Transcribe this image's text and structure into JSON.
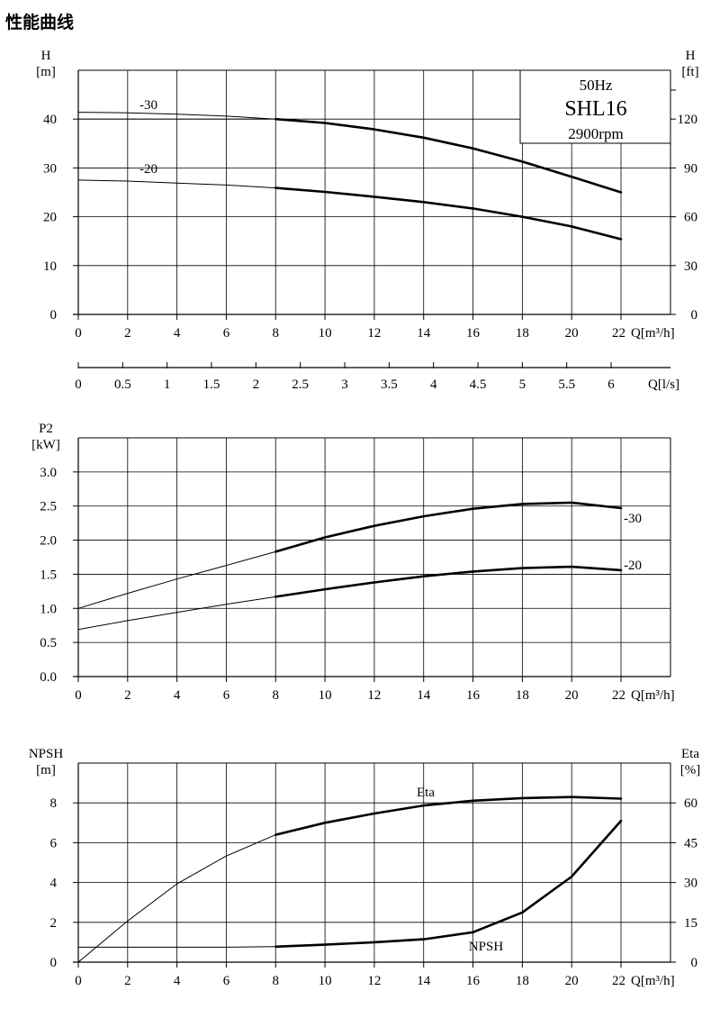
{
  "page_title": "性能曲线",
  "chart_data": [
    {
      "type": "line",
      "y_label": "H",
      "y_unit": "[m]",
      "y2_label": "H",
      "y2_unit": "[ft]",
      "x_label": "Q[m³/h]",
      "x_ticks": [
        "0",
        "2",
        "4",
        "6",
        "8",
        "10",
        "12",
        "14",
        "16",
        "18",
        "20",
        "22"
      ],
      "y_ticks": [
        "0",
        "10",
        "20",
        "30",
        "40"
      ],
      "y2_ticks": [
        "0",
        "30",
        "60",
        "90",
        "120"
      ],
      "xlim": [
        0,
        22
      ],
      "ylim": [
        0,
        50
      ],
      "grid": true,
      "info_box": {
        "freq": "50Hz",
        "model": "SHL16",
        "speed": "2900rpm"
      },
      "series": [
        {
          "name": "-30",
          "x": [
            0,
            2,
            4,
            6,
            8,
            10,
            12,
            14,
            16,
            18,
            20,
            22
          ],
          "y": [
            41.4,
            41.3,
            41,
            40.6,
            40,
            39.2,
            37.9,
            36.2,
            34,
            31.3,
            28.2,
            25
          ]
        },
        {
          "name": "-20",
          "x": [
            0,
            2,
            4,
            6,
            8,
            10,
            12,
            14,
            16,
            18,
            20,
            22
          ],
          "y": [
            27.5,
            27.3,
            26.9,
            26.5,
            25.9,
            25.1,
            24.1,
            23,
            21.7,
            20,
            18,
            15.4
          ]
        }
      ],
      "q_ls_label": "Q[l/s]",
      "q_ls_ticks": [
        "0",
        "0.5",
        "1",
        "1.5",
        "2",
        "2.5",
        "3",
        "3.5",
        "4",
        "4.5",
        "5",
        "5.5",
        "6"
      ]
    },
    {
      "type": "line",
      "y_label": "P2",
      "y_unit": "[kW]",
      "x_label": "Q[m³/h]",
      "x_ticks": [
        "0",
        "2",
        "4",
        "6",
        "8",
        "10",
        "12",
        "14",
        "16",
        "18",
        "20",
        "22"
      ],
      "y_ticks": [
        "0.0",
        "0.5",
        "1.0",
        "1.5",
        "2.0",
        "2.5",
        "3.0"
      ],
      "xlim": [
        0,
        22
      ],
      "ylim": [
        0,
        3.5
      ],
      "grid": true,
      "series": [
        {
          "name": "-30",
          "x": [
            0,
            2,
            4,
            6,
            8,
            10,
            12,
            14,
            16,
            18,
            20,
            22
          ],
          "y": [
            1.0,
            1.22,
            1.43,
            1.63,
            1.83,
            2.04,
            2.21,
            2.35,
            2.46,
            2.53,
            2.55,
            2.47
          ]
        },
        {
          "name": "-20",
          "x": [
            0,
            2,
            4,
            6,
            8,
            10,
            12,
            14,
            16,
            18,
            20,
            22
          ],
          "y": [
            0.69,
            0.82,
            0.94,
            1.06,
            1.17,
            1.28,
            1.38,
            1.47,
            1.54,
            1.59,
            1.61,
            1.56
          ]
        }
      ]
    },
    {
      "type": "line",
      "y_label": "NPSH",
      "y_unit": "[m]",
      "y2_label": "Eta",
      "y2_unit": "[%]",
      "x_label": "Q[m³/h]",
      "x_ticks": [
        "0",
        "2",
        "4",
        "6",
        "8",
        "10",
        "12",
        "14",
        "16",
        "18",
        "20",
        "22"
      ],
      "y_ticks": [
        "0",
        "2",
        "4",
        "6",
        "8"
      ],
      "y2_ticks": [
        "0",
        "15",
        "30",
        "45",
        "60"
      ],
      "xlim": [
        0,
        22
      ],
      "ylim": [
        0,
        10
      ],
      "grid": true,
      "series": [
        {
          "name": "Eta",
          "x": [
            0,
            2,
            4,
            6,
            8,
            10,
            12,
            14,
            16,
            18,
            20,
            22
          ],
          "y": [
            0,
            15.5,
            29.5,
            40,
            48,
            52.5,
            56,
            59,
            60.8,
            61.8,
            62.2,
            61.6
          ]
        },
        {
          "name": "NPSH",
          "x": [
            0,
            2,
            4,
            6,
            8,
            10,
            12,
            14,
            16,
            18,
            20,
            22
          ],
          "y": [
            0.75,
            0.75,
            0.75,
            0.75,
            0.78,
            0.88,
            1.0,
            1.15,
            1.5,
            2.5,
            4.3,
            7.1
          ]
        }
      ]
    }
  ]
}
